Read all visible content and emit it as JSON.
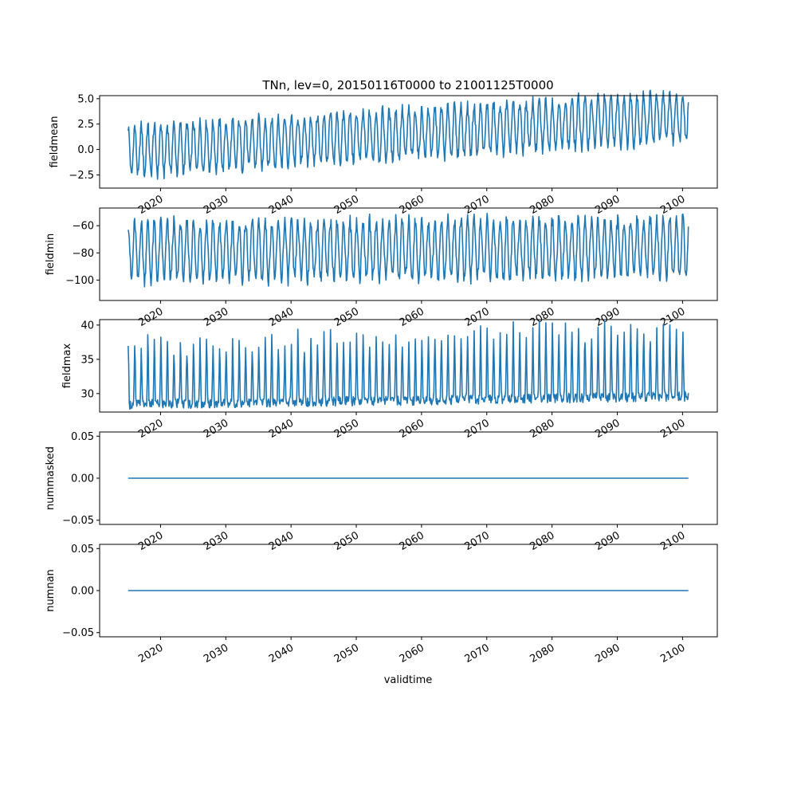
{
  "figure": {
    "title": "TNn, lev=0, 20150116T0000 to 21001125T0000",
    "xlabel": "validtime"
  },
  "colors": {
    "line": "#1f77b4",
    "axes": "#000000",
    "background": "#ffffff"
  },
  "chart_data": [
    {
      "type": "line",
      "name": "fieldmean",
      "ylabel": "fieldmean",
      "x_range": [
        "2015-01-16",
        "2100-11-25"
      ],
      "xlim": [
        "2010-09-01",
        "2105-05-01"
      ],
      "ylim": [
        -3.8,
        5.3
      ],
      "yticks": [
        5.0,
        2.5,
        0.0,
        -2.5
      ],
      "ytick_labels": [
        "5.0",
        "2.5",
        "0.0",
        "−2.5"
      ],
      "trend": {
        "start": -0.2,
        "end": 3.3
      },
      "seasonal_amplitude": 2.4,
      "grid": false
    },
    {
      "type": "line",
      "name": "fieldmin",
      "ylabel": "fieldmin",
      "x_range": [
        "2015-01-16",
        "2100-11-25"
      ],
      "xlim": [
        "2010-09-01",
        "2105-05-01"
      ],
      "ylim": [
        -115,
        -47
      ],
      "yticks": [
        -60,
        -80,
        -100
      ],
      "ytick_labels": [
        "−60",
        "−80",
        "−100"
      ],
      "trend": {
        "start": -79,
        "end": -76
      },
      "seasonal_amplitude": 21,
      "grid": false
    },
    {
      "type": "line",
      "name": "fieldmax",
      "ylabel": "fieldmax",
      "x_range": [
        "2015-01-16",
        "2100-11-25"
      ],
      "xlim": [
        "2010-09-01",
        "2105-05-01"
      ],
      "ylim": [
        27.3,
        40.8
      ],
      "yticks": [
        40,
        35,
        30
      ],
      "ytick_labels": [
        "40",
        "35",
        "30"
      ],
      "trend": {
        "start": 28.4,
        "end": 29.6
      },
      "peak_start": 37.0,
      "peak_end": 39.5,
      "grid": false
    },
    {
      "type": "line",
      "name": "nummasked",
      "ylabel": "nummasked",
      "x_range": [
        "2015-01-16",
        "2100-11-25"
      ],
      "xlim": [
        "2010-09-01",
        "2105-05-01"
      ],
      "ylim": [
        -0.055,
        0.055
      ],
      "yticks": [
        0.05,
        0.0,
        -0.05
      ],
      "ytick_labels": [
        "0.05",
        "0.00",
        "−0.05"
      ],
      "constant": 0.0,
      "grid": false
    },
    {
      "type": "line",
      "name": "numnan",
      "ylabel": "numnan",
      "x_range": [
        "2015-01-16",
        "2100-11-25"
      ],
      "xlim": [
        "2010-09-01",
        "2105-05-01"
      ],
      "ylim": [
        -0.055,
        0.055
      ],
      "yticks": [
        0.05,
        0.0,
        -0.05
      ],
      "ytick_labels": [
        "0.05",
        "0.00",
        "−0.05"
      ],
      "constant": 0.0,
      "grid": false
    }
  ],
  "xaxis": {
    "ticks": [
      "2020-01-01",
      "2030-01-01",
      "2040-01-01",
      "2050-01-01",
      "2060-01-01",
      "2070-01-01",
      "2080-01-01",
      "2090-01-01",
      "2100-01-01"
    ],
    "tick_labels": [
      "2020",
      "2030",
      "2040",
      "2050",
      "2060",
      "2070",
      "2080",
      "2090",
      "2100"
    ]
  }
}
